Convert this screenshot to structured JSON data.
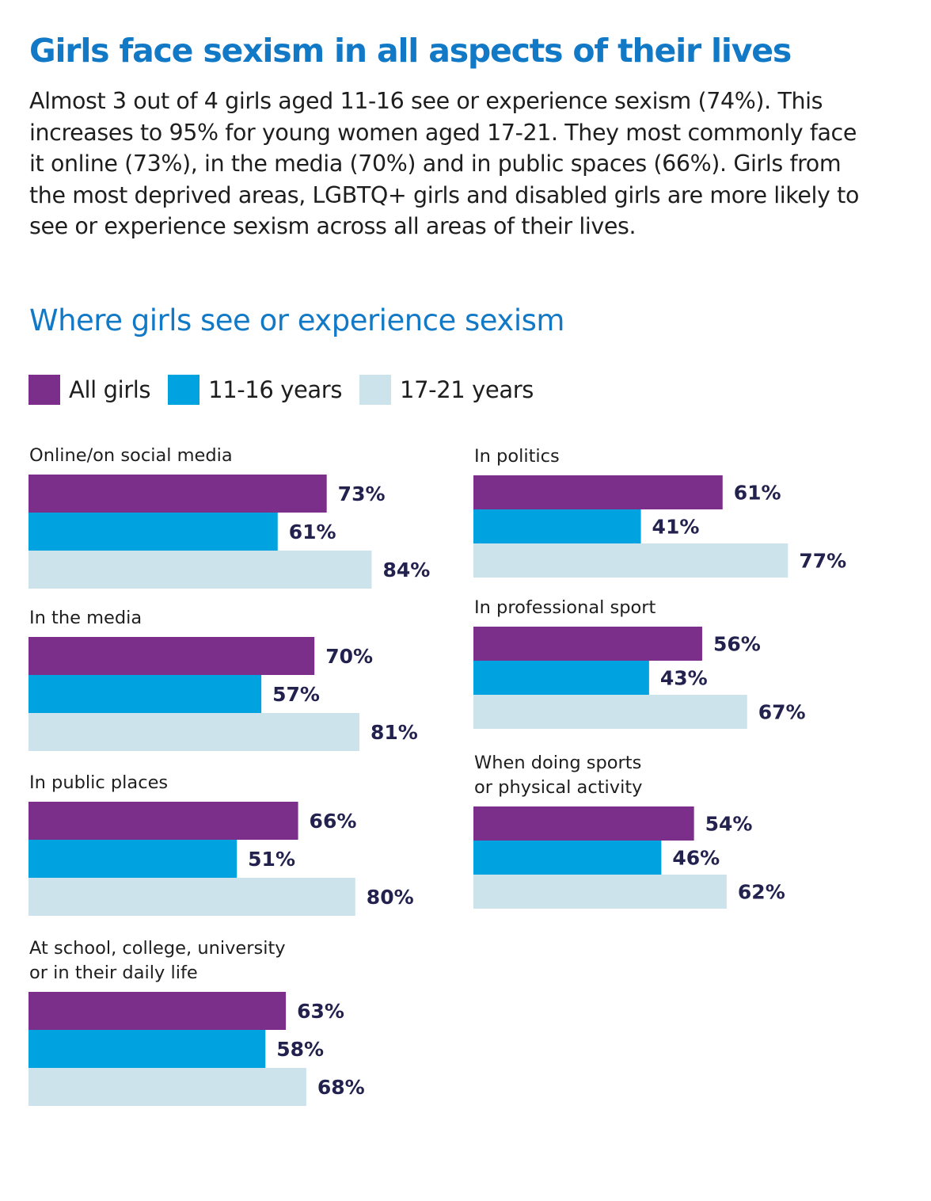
{
  "header": {
    "title": "Girls face sexism in all aspects of their lives",
    "intro": "Almost 3 out of 4 girls aged 11-16 see or experience sexism (74%). This increases to 95% for young women aged 17-21. They most commonly face it online (73%), in the media (70%) and in public spaces (66%). Girls from the most deprived areas, LGBTQ+ girls and disabled girls are more likely to see or experience sexism across all areas of their lives."
  },
  "chart_data": {
    "type": "bar",
    "orientation": "horizontal",
    "title": "Where girls see or experience sexism",
    "xlabel": "",
    "ylabel": "",
    "unit": "%",
    "xlim": [
      0,
      100
    ],
    "grid": false,
    "legend_position": "top-left",
    "series": [
      {
        "name": "All girls",
        "color": "#7b2f8a"
      },
      {
        "name": "11-16 years",
        "color": "#00a3e0"
      },
      {
        "name": "17-21 years",
        "color": "#cde3eb"
      }
    ],
    "categories": [
      {
        "label_lines": [
          "Online/on social media"
        ],
        "values": [
          73,
          61,
          84
        ],
        "column": "left"
      },
      {
        "label_lines": [
          "In the media"
        ],
        "values": [
          70,
          57,
          81
        ],
        "column": "left"
      },
      {
        "label_lines": [
          "In public places"
        ],
        "values": [
          66,
          51,
          80
        ],
        "column": "left"
      },
      {
        "label_lines": [
          "At school, college, university",
          "or in their daily life"
        ],
        "values": [
          63,
          58,
          68
        ],
        "column": "left"
      },
      {
        "label_lines": [
          "In politics"
        ],
        "values": [
          61,
          41,
          77
        ],
        "column": "right"
      },
      {
        "label_lines": [
          "In professional sport"
        ],
        "values": [
          56,
          43,
          67
        ],
        "column": "right"
      },
      {
        "label_lines": [
          "When doing sports",
          "or physical activity"
        ],
        "values": [
          54,
          46,
          62
        ],
        "column": "right"
      }
    ]
  }
}
